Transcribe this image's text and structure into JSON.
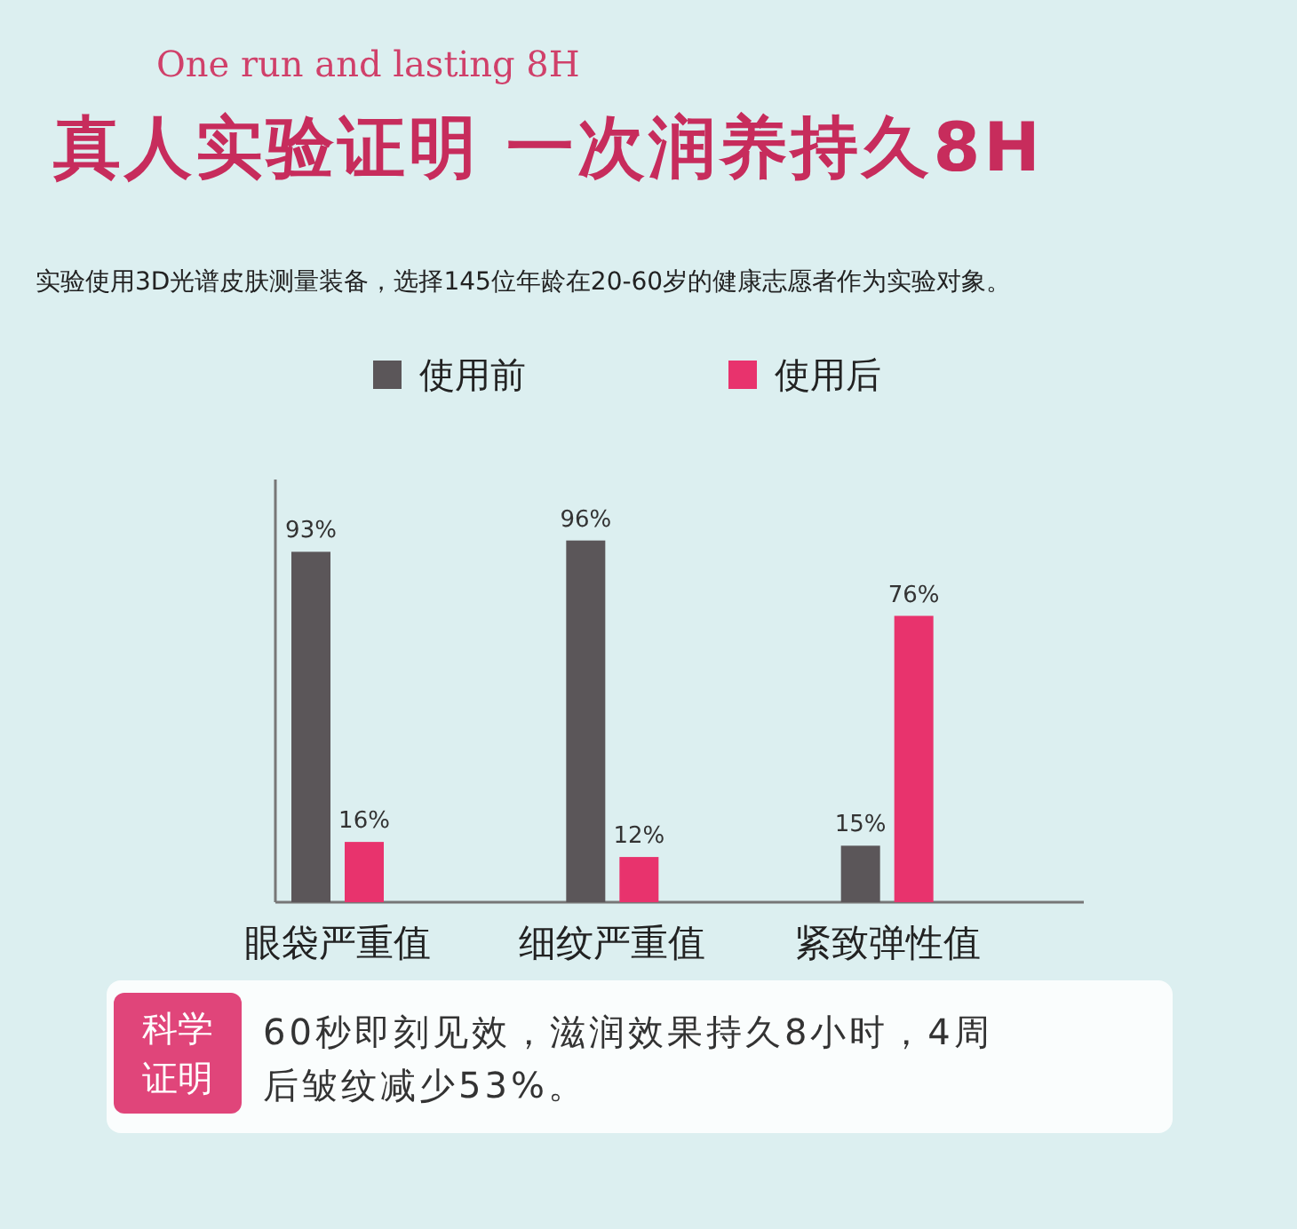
{
  "chart_data": {
    "type": "bar",
    "title": "真人实验证明 一次润养持久8H",
    "subtitle": "One run and lasting 8H",
    "annotations": [
      "实验使用3D光谱皮肤测量装备，选择145位年龄在20-60岁的健康志愿者作为实验对象。",
      "科学证明",
      "60秒即刻见效，滋润效果持久8小时，4周后皱纹减少53%。"
    ],
    "categories": [
      "眼袋严重值",
      "细纹严重值",
      "紧致弹性值"
    ],
    "series": [
      {
        "name": "使用前",
        "color": "#5b5659",
        "values": [
          93,
          96,
          15
        ],
        "value_labels": [
          "93%",
          "96%",
          "15%"
        ]
      },
      {
        "name": "使用后",
        "color": "#e8336d",
        "values": [
          16,
          12,
          76
        ],
        "value_labels": [
          "16%",
          "12%",
          "76%"
        ]
      }
    ],
    "legend": "top",
    "relative": false
  }
}
